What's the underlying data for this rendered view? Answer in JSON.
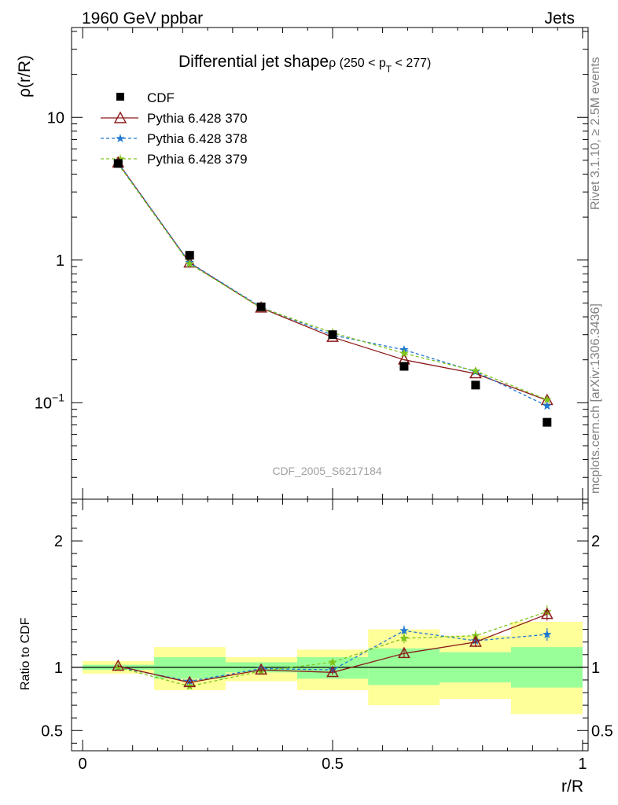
{
  "header": {
    "left": "1960 GeV ppbar",
    "right": "Jets"
  },
  "side_text": {
    "rivet": "Rivet 3.1.10, ≥ 2.5M events",
    "mcplots": "mcplots.cern.ch [arXiv:1306.3436]"
  },
  "watermark": "CDF_2005_S6217184",
  "chart_data": [
    {
      "type": "line",
      "title_main": "Differential jet shape",
      "title_sub": "ρ (250 < p",
      "title_sub_subscript": "T",
      "title_sub_tail": " < 277)",
      "ylabel": "ρ(r/R)",
      "xlabel": "",
      "yscale": "log",
      "ylim": [
        0.0211,
        42.6
      ],
      "xlim": [
        -0.0222,
        1.0111
      ],
      "y_tick_labels": [
        {
          "value": 0.1,
          "base": "10",
          "exp": "−1"
        },
        {
          "value": 1,
          "base": "1",
          "exp": ""
        },
        {
          "value": 10,
          "base": "10",
          "exp": ""
        }
      ],
      "legend_position": "top-left",
      "x": [
        0.071,
        0.214,
        0.357,
        0.5,
        0.643,
        0.786,
        0.929
      ],
      "series": [
        {
          "name": "CDF",
          "color": "#000000",
          "marker": "square",
          "line": "none",
          "values": [
            4.75,
            1.08,
            0.47,
            0.3,
            0.18,
            0.133,
            0.073
          ]
        },
        {
          "name": "Pythia 6.428 370",
          "color": "#8b1a1a",
          "marker": "triangle-open",
          "line": "solid",
          "values": [
            4.8,
            0.955,
            0.462,
            0.288,
            0.2,
            0.16,
            0.104
          ]
        },
        {
          "name": "Pythia 6.428 378",
          "color": "#1f78d1",
          "marker": "star",
          "line": "dashed",
          "values": [
            4.78,
            0.96,
            0.468,
            0.298,
            0.235,
            0.165,
            0.095
          ]
        },
        {
          "name": "Pythia 6.428 379",
          "color": "#7fc31c",
          "marker": "star",
          "line": "dashed",
          "values": [
            4.7,
            0.94,
            0.462,
            0.31,
            0.222,
            0.167,
            0.105
          ]
        }
      ]
    },
    {
      "type": "line",
      "ylabel": "Ratio to CDF",
      "xlabel": "r/R",
      "ylim": [
        0.34,
        2.33
      ],
      "xlim": [
        -0.0222,
        1.0111
      ],
      "y_ticks": [
        0.5,
        1,
        2
      ],
      "y_tick_labels": [
        "0.5",
        "1",
        "2"
      ],
      "x_ticks": [
        0,
        0.5,
        1
      ],
      "x_tick_labels": [
        "0",
        "0.5",
        "1"
      ],
      "reference_line": 1,
      "bands": {
        "edges": [
          0,
          0.143,
          0.286,
          0.429,
          0.571,
          0.714,
          0.857,
          1.0
        ],
        "inner": {
          "color": "#99ff99",
          "low": [
            0.98,
            0.91,
            0.96,
            0.91,
            0.86,
            0.88,
            0.84
          ],
          "high": [
            1.02,
            1.08,
            1.04,
            1.08,
            1.15,
            1.12,
            1.16
          ]
        },
        "outer": {
          "color": "#ffff99",
          "low": [
            0.95,
            0.82,
            0.89,
            0.82,
            0.7,
            0.75,
            0.63
          ],
          "high": [
            1.05,
            1.16,
            1.08,
            1.14,
            1.3,
            1.25,
            1.36
          ]
        }
      },
      "x": [
        0.071,
        0.214,
        0.357,
        0.5,
        0.643,
        0.786,
        0.929
      ],
      "series": [
        {
          "name": "Pythia 6.428 370",
          "color": "#8b1a1a",
          "marker": "triangle-open",
          "line": "solid",
          "values": [
            1.01,
            0.88,
            0.98,
            0.96,
            1.11,
            1.2,
            1.42
          ],
          "errors": [
            0.01,
            0.01,
            0.02,
            0.02,
            0.03,
            0.04,
            0.05
          ]
        },
        {
          "name": "Pythia 6.428 378",
          "color": "#1f78d1",
          "marker": "star",
          "line": "dashed",
          "values": [
            1.0,
            0.89,
            0.99,
            0.98,
            1.29,
            1.21,
            1.26
          ],
          "errors": [
            0.01,
            0.01,
            0.02,
            0.02,
            0.04,
            0.04,
            0.05
          ]
        },
        {
          "name": "Pythia 6.428 379",
          "color": "#7fc31c",
          "marker": "star",
          "line": "dashed",
          "values": [
            1.0,
            0.85,
            0.97,
            1.04,
            1.23,
            1.25,
            1.44
          ],
          "errors": [
            0.01,
            0.01,
            0.02,
            0.02,
            0.04,
            0.04,
            0.05
          ]
        }
      ]
    }
  ]
}
